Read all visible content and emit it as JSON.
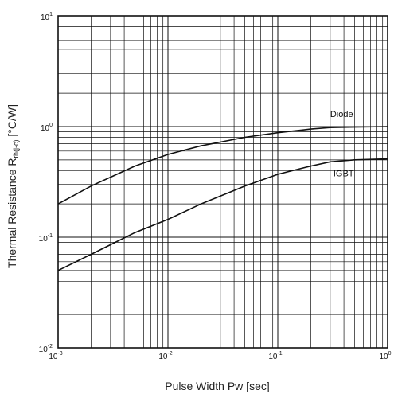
{
  "chart_data": {
    "type": "line",
    "title": "",
    "xscale": "log",
    "yscale": "log",
    "xlim": [
      0.001,
      1
    ],
    "ylim": [
      0.01,
      10
    ],
    "grid": true,
    "x_ticks": [
      {
        "value": 0.001,
        "base": "10",
        "exp": "-3"
      },
      {
        "value": 0.01,
        "base": "10",
        "exp": "-2"
      },
      {
        "value": 0.1,
        "base": "10",
        "exp": "-1"
      },
      {
        "value": 1,
        "base": "10",
        "exp": "0"
      }
    ],
    "y_ticks": [
      {
        "value": 0.01,
        "base": "10",
        "exp": "-2"
      },
      {
        "value": 0.1,
        "base": "10",
        "exp": "-1"
      },
      {
        "value": 1,
        "base": "10",
        "exp": "0"
      },
      {
        "value": 10,
        "base": "10",
        "exp": "1"
      }
    ],
    "xlabel": {
      "main": "Pulse Width Pw [sec]"
    },
    "ylabel": {
      "pre": "Thermal Resistance R",
      "sub": "th(j-c)",
      "post": " [°C/W]"
    },
    "series": [
      {
        "name": "Diode",
        "x": [
          0.001,
          0.002,
          0.005,
          0.01,
          0.02,
          0.05,
          0.1,
          0.2,
          0.3,
          0.5,
          1
        ],
        "y": [
          0.2,
          0.29,
          0.44,
          0.56,
          0.67,
          0.8,
          0.88,
          0.95,
          0.98,
          0.99,
          1.0
        ]
      },
      {
        "name": "IGBT",
        "x": [
          0.001,
          0.002,
          0.005,
          0.01,
          0.02,
          0.05,
          0.1,
          0.2,
          0.3,
          0.5,
          1
        ],
        "y": [
          0.05,
          0.07,
          0.11,
          0.145,
          0.2,
          0.29,
          0.37,
          0.44,
          0.48,
          0.5,
          0.51
        ]
      }
    ]
  }
}
